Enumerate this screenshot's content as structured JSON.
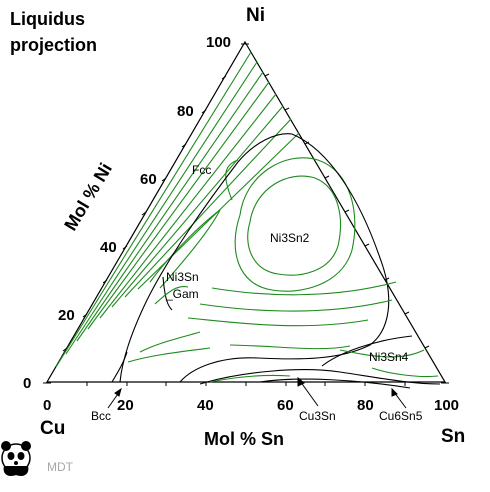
{
  "title_lines": [
    "Liquidus",
    "projection"
  ],
  "vertices": {
    "top": "Ni",
    "bottom_left": "Cu",
    "bottom_right": "Sn"
  },
  "axes": {
    "left_label": "Mol % Ni",
    "bottom_label": "Mol % Sn",
    "left_ticks": [
      "0",
      "20",
      "40",
      "60",
      "80",
      "100"
    ],
    "bottom_ticks": [
      "0",
      "20",
      "40",
      "60",
      "80",
      "100"
    ]
  },
  "phase_labels": {
    "fcc": "Fcc",
    "ni3sn2": "Ni3Sn2",
    "ni3sn_gam_1": "Ni3Sn",
    "ni3sn_gam_2": "_Gam",
    "ni3sn4": "Ni3Sn4",
    "bcc": "Bcc",
    "cu3sn": "Cu3Sn",
    "cu6sn5": "Cu6Sn5"
  },
  "colors": {
    "isotherm": "#1e8a1e",
    "boundary": "#000000",
    "logo": "#000000",
    "watermark": "#a8a8a8"
  },
  "footer": {
    "logo_icon": "panda-icon",
    "watermark": "MDT"
  }
}
